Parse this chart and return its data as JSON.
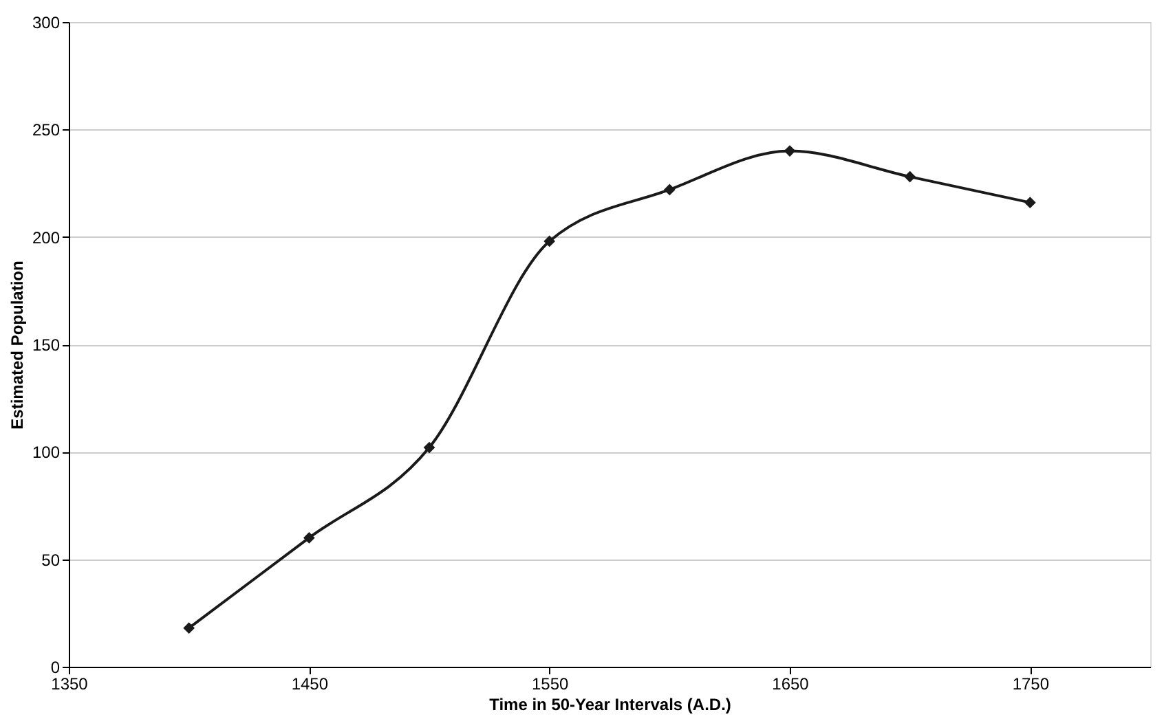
{
  "chart_data": {
    "type": "line",
    "xlabel": "Time in 50-Year Intervals (A.D.)",
    "ylabel": "Estimated Population",
    "x": [
      1400,
      1450,
      1500,
      1550,
      1600,
      1650,
      1700,
      1750
    ],
    "series": [
      {
        "color": "#1a1a1a",
        "values": [
          18,
          60,
          102,
          198,
          222,
          240,
          228,
          216
        ]
      }
    ],
    "xlim": [
      1350,
      1800
    ],
    "xticks": [
      1350,
      1450,
      1550,
      1650,
      1750
    ],
    "ylim": [
      0,
      300
    ],
    "yticks": [
      0,
      50,
      100,
      150,
      200,
      250,
      300
    ],
    "grid": "y",
    "marker": "diamond",
    "line_style": "solid"
  }
}
